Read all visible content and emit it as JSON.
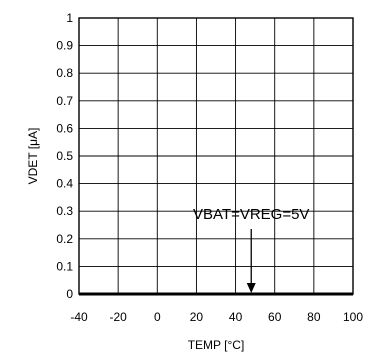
{
  "chart_data": {
    "type": "line",
    "title": "",
    "xlabel": "TEMP [°C]",
    "ylabel": "VDET [μA]",
    "xlim": [
      -40,
      100
    ],
    "ylim": [
      0,
      1
    ],
    "xticks": [
      -40,
      -20,
      0,
      20,
      40,
      60,
      80,
      100
    ],
    "yticks": [
      0,
      0.1,
      0.2,
      0.3,
      0.4,
      0.5,
      0.6,
      0.7,
      0.8,
      0.9,
      1
    ],
    "xtick_labels": [
      "-40",
      "-20",
      "0",
      "20",
      "40",
      "60",
      "80",
      "100"
    ],
    "ytick_labels": [
      "0",
      "0.1",
      "0.2",
      "0.3",
      "0.4",
      "0.5",
      "0.6",
      "0.7",
      "0.8",
      "0.9",
      "1"
    ],
    "grid": true,
    "series": [
      {
        "x": [
          -40,
          -20,
          0,
          20,
          40,
          60,
          80,
          100
        ],
        "y": [
          0,
          0,
          0,
          0,
          0,
          0,
          0,
          0
        ]
      }
    ],
    "annotations": [
      {
        "text": "VBAT=VREG=5V",
        "x": 48,
        "y": 0.25,
        "arrow_to": [
          48,
          0
        ]
      }
    ]
  }
}
